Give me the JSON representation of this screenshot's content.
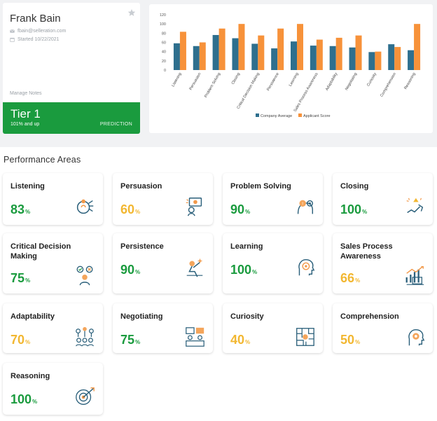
{
  "profile": {
    "name": "Frank Bain",
    "email": "fbain@selleration.com",
    "started": "Started 10/22/2021",
    "manage_notes": "Manage Notes",
    "tier": "Tier 1",
    "tier_sub": "101% and up",
    "prediction": "PREDICTION"
  },
  "colors": {
    "green": "#1a9b3e",
    "yellow": "#f2b731",
    "company": "#2e6f8e",
    "applicant": "#f7923a"
  },
  "chart_data": {
    "type": "bar",
    "categories": [
      "Listening",
      "Persuasion",
      "Problem Solving",
      "Closing",
      "Critical Decision Making",
      "Persistence",
      "Learning",
      "Sales Process Awareness",
      "Adaptability",
      "Negotiating",
      "Curiosity",
      "Comprehension",
      "Reasoning"
    ],
    "series": [
      {
        "name": "Company Average",
        "values": [
          58,
          52,
          76,
          69,
          57,
          47,
          62,
          53,
          52,
          49,
          39,
          56,
          43
        ]
      },
      {
        "name": "Applicant Score",
        "values": [
          83,
          60,
          90,
          100,
          75,
          90,
          100,
          66,
          70,
          75,
          40,
          50,
          100
        ]
      }
    ],
    "yticks": [
      "0",
      "20",
      "40",
      "60",
      "80",
      "100",
      "120"
    ],
    "ylim": [
      0,
      120
    ],
    "legend_position": "bottom"
  },
  "section_title": "Performance Areas",
  "areas": [
    {
      "name": "Listening",
      "score": "83",
      "color": "green",
      "icon": "listening-icon"
    },
    {
      "name": "Persuasion",
      "score": "60",
      "color": "yellow",
      "icon": "persuasion-icon"
    },
    {
      "name": "Problem Solving",
      "score": "90",
      "color": "green",
      "icon": "problem-solving-icon"
    },
    {
      "name": "Closing",
      "score": "100",
      "color": "green",
      "icon": "closing-icon"
    },
    {
      "name": "Critical Decision Making",
      "score": "75",
      "color": "green",
      "icon": "critical-decision-icon"
    },
    {
      "name": "Persistence",
      "score": "90",
      "color": "green",
      "icon": "persistence-icon"
    },
    {
      "name": "Learning",
      "score": "100",
      "color": "green",
      "icon": "learning-icon"
    },
    {
      "name": "Sales Process Awareness",
      "score": "66",
      "color": "yellow",
      "icon": "sales-process-icon"
    },
    {
      "name": "Adaptability",
      "score": "70",
      "color": "yellow",
      "icon": "adaptability-icon"
    },
    {
      "name": "Negotiating",
      "score": "75",
      "color": "green",
      "icon": "negotiating-icon"
    },
    {
      "name": "Curiosity",
      "score": "40",
      "color": "yellow",
      "icon": "curiosity-icon"
    },
    {
      "name": "Comprehension",
      "score": "50",
      "color": "yellow",
      "icon": "comprehension-icon"
    },
    {
      "name": "Reasoning",
      "score": "100",
      "color": "green",
      "icon": "reasoning-icon"
    }
  ],
  "pct_symbol": "%"
}
